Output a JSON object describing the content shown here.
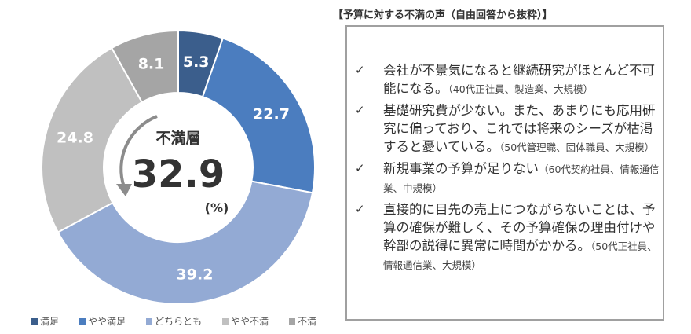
{
  "chart_data": {
    "type": "pie",
    "donut": true,
    "categories": [
      "満足",
      "やや満足",
      "どちらとも",
      "やや不満",
      "不満"
    ],
    "values": [
      5.3,
      22.7,
      39.2,
      24.8,
      8.1
    ],
    "colors": [
      "#3b5e8c",
      "#4b7dbf",
      "#93aad4",
      "#c0c0c0",
      "#a5a5a5"
    ],
    "center_label": "不満層",
    "center_value": "32.9",
    "center_unit": "(%)",
    "legend_position": "bottom"
  },
  "panel": {
    "title": "【予算に対する不満の声（自由回答から抜粋）】",
    "check_icon": "check-icon",
    "items": [
      {
        "text": "会社が不景気になると継続研究がほとんど不可能になる。",
        "note": "（40代正社員、製造業、大規模）"
      },
      {
        "text": "基礎研究費が少ない。また、あまりにも応用研究に偏っており、これでは将来のシーズが枯渇すると憂いている。",
        "note": "（50代管理職、団体職員、大規模）"
      },
      {
        "text": "新規事業の予算が足りない",
        "note": "（60代契約社員、情報通信業、中規模）"
      },
      {
        "text": "直接的に目先の売上につながらないことは、予算の確保が難しく、その予算確保の理由付けや幹部の説得に異常に時間がかかる。",
        "note": "（50代正社員、情報通信業、大規模）"
      }
    ]
  }
}
